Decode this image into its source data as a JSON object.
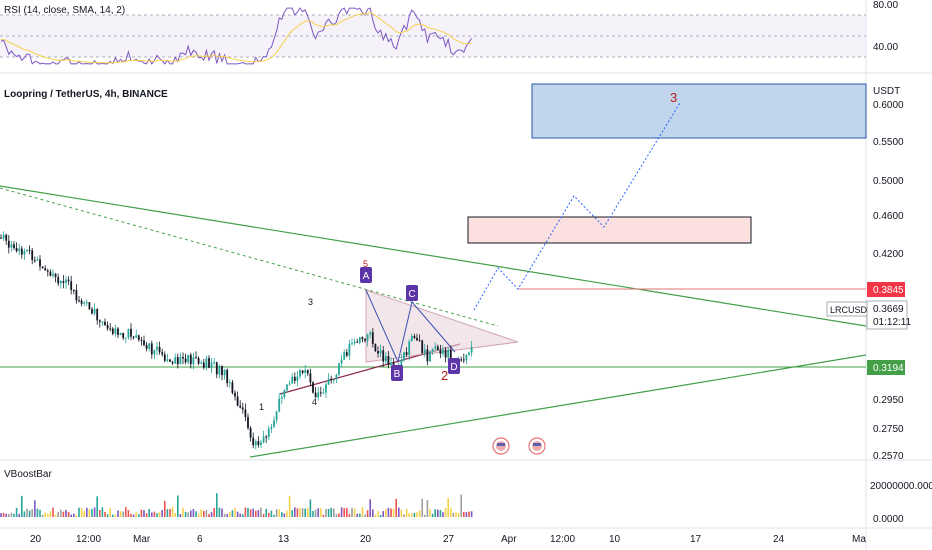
{
  "rsi": {
    "label": "RSI (14, close, SMA, 14, 2)",
    "levels": [
      "80.00",
      "40.00"
    ],
    "level_values": [
      80,
      40
    ],
    "band_upper": 70,
    "band_lower": 30,
    "ylim": [
      25,
      85
    ]
  },
  "main": {
    "symbol": "Loopring / TetherUS, 4h, BINANCE",
    "currency": "USDT",
    "price_labels": [
      "0.6000",
      "0.5500",
      "0.5000",
      "0.4600",
      "0.4200",
      "0.2950",
      "0.2750",
      "0.2570"
    ],
    "price_label_values": [
      0.6,
      0.55,
      0.5,
      0.46,
      0.42,
      0.295,
      0.275,
      0.257
    ],
    "badges": {
      "resistance": {
        "text": "0.3845",
        "value": 0.3845,
        "color": "#f23645"
      },
      "current": {
        "ticker": "LRCUSDT",
        "price": "0.3669",
        "countdown": "01:12:11",
        "value": 0.3669
      },
      "support": {
        "text": "0.3194",
        "value": 0.3194,
        "color": "#43a047"
      }
    },
    "ylim": [
      0.25,
      0.62
    ],
    "wave_labels": [
      "1",
      "2",
      "3",
      "4",
      "5",
      "A",
      "B",
      "C",
      "D",
      "2",
      "3"
    ],
    "zones": [
      {
        "label": "target-zone",
        "low": 0.555,
        "high": 0.615,
        "color": "#b2cde8"
      },
      {
        "label": "resistance-zone",
        "low": 0.428,
        "high": 0.455,
        "color": "#fbe0df"
      }
    ]
  },
  "indicator": {
    "label": "VBoostBar",
    "scale": [
      "20000000.0000",
      "0.0000"
    ]
  },
  "x_axis": {
    "labels": [
      "20",
      "12:00",
      "Mar",
      "6",
      "13",
      "20",
      "27",
      "Apr",
      "12:00",
      "10",
      "17",
      "24",
      "Ma"
    ]
  },
  "colors": {
    "bull": "#26a69a",
    "bear": "#131722",
    "green_line": "#43a047",
    "rsi_line": "#7e57c2",
    "rsi_ma": "#f7d14a",
    "wave_red": "#b71c1c",
    "projection": "#2962ff"
  },
  "chart_data": {
    "type": "candlestick",
    "title": "Loopring / TetherUS, 4h, BINANCE",
    "ylabel": "USDT",
    "ylim": [
      0.25,
      0.62
    ],
    "series": [
      {
        "name": "LRCUSDT",
        "start": 0.468,
        "end": 0.3669,
        "low": 0.257,
        "high": 0.468
      }
    ],
    "annotations": [
      "0.3845",
      "0.3194"
    ]
  }
}
